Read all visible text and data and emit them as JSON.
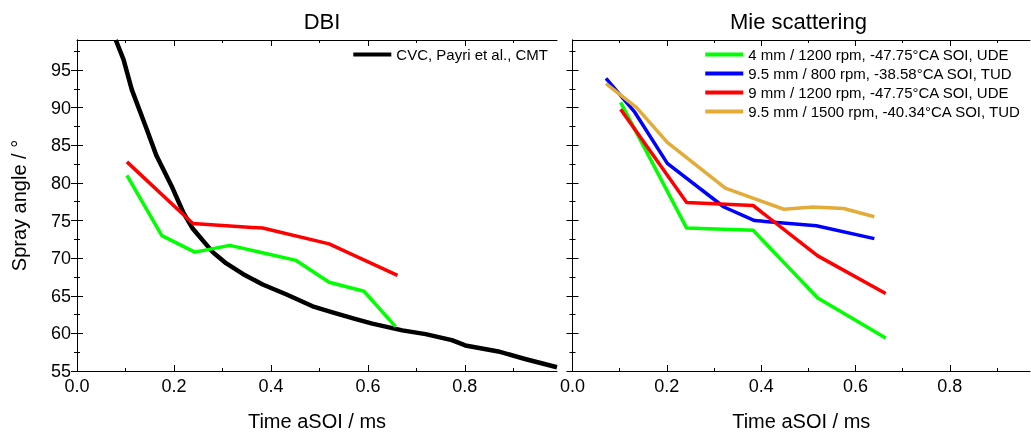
{
  "chart_data": [
    {
      "type": "line",
      "title": "DBI",
      "xlabel": "Time aSOI / ms",
      "ylabel": "Spray angle / °",
      "xlim": [
        0,
        0.99
      ],
      "xticks": [
        {
          "value": 0,
          "label": "0.0"
        },
        0.2,
        0.4,
        0.6,
        0.8
      ],
      "ylim": [
        55,
        99
      ],
      "yticks": [
        55,
        60,
        65,
        70,
        75,
        80,
        85,
        90,
        95
      ],
      "legend": "top right",
      "line_style": "solid",
      "marker": "none",
      "series": [
        {
          "name": "CVC, Payri et al., CMT",
          "color": "#000000",
          "x": [
            0.08,
            0.096,
            0.113,
            0.144,
            0.164,
            0.195,
            0.219,
            0.239,
            0.28,
            0.308,
            0.342,
            0.383,
            0.431,
            0.486,
            0.527,
            0.575,
            0.609,
            0.671,
            0.719,
            0.773,
            0.801,
            0.869,
            0.924,
            0.99
          ],
          "values": [
            99,
            96.4,
            92.4,
            87.1,
            83.6,
            79.6,
            76.1,
            73.9,
            70.8,
            69.3,
            67.9,
            66.5,
            65.2,
            63.6,
            62.8,
            61.9,
            61.3,
            60.4,
            59.9,
            59.1,
            58.4,
            57.6,
            56.6,
            55.5
          ]
        },
        {
          "color": "#ff0000",
          "x": [
            0.103,
            0.239,
            0.383,
            0.52,
            0.661
          ],
          "values": [
            82.8,
            74.6,
            74.0,
            71.9,
            67.7
          ]
        },
        {
          "color": "#00ff00",
          "x": [
            0.103,
            0.175,
            0.243,
            0.315,
            0.452,
            0.52,
            0.592,
            0.657
          ],
          "values": [
            81.0,
            73.0,
            70.8,
            71.7,
            69.7,
            66.8,
            65.6,
            60.9
          ]
        }
      ]
    },
    {
      "type": "line",
      "title": "Mie scattering",
      "xlabel": "Time aSOI / ms",
      "xlim": [
        0,
        0.97
      ],
      "xticks": [
        {
          "value": 0,
          "label": "0.0"
        },
        0.2,
        0.4,
        0.6,
        0.8
      ],
      "ylim": [
        55,
        99
      ],
      "yticks": [
        55,
        60,
        65,
        70,
        75,
        80,
        85,
        90,
        95
      ],
      "tick_labels": "x",
      "legend": "top right",
      "line_style": "solid",
      "marker": "none",
      "series": [
        {
          "name": "4 mm / 1200 rpm, -47.75°CA SOI, UDE",
          "color": "#00ff00",
          "x": [
            0.102,
            0.242,
            0.383,
            0.52,
            0.664
          ],
          "values": [
            90.7,
            74.0,
            73.7,
            64.7,
            59.4
          ]
        },
        {
          "name": "9.5 mm / 800 rpm, -38.58°CA SOI, TUD",
          "color": "#0000ff",
          "x": [
            0.071,
            0.132,
            0.201,
            0.321,
            0.386,
            0.517,
            0.64
          ],
          "values": [
            93.9,
            89.4,
            82.6,
            76.8,
            75.0,
            74.3,
            72.6
          ]
        },
        {
          "name": "9 mm / 1200 rpm, -47.75°CA SOI, UDE",
          "color": "#ff0000",
          "x": [
            0.102,
            0.242,
            0.383,
            0.52,
            0.664
          ],
          "values": [
            89.8,
            77.4,
            77.0,
            70.3,
            65.3
          ]
        },
        {
          "name": "9.5 mm / 1500 rpm, -40.34°CA SOI, TUD",
          "color": "#e3ac38",
          "x": [
            0.071,
            0.136,
            0.201,
            0.324,
            0.448,
            0.51,
            0.575,
            0.64
          ],
          "values": [
            93.2,
            90.0,
            85.4,
            79.3,
            76.5,
            76.8,
            76.6,
            75.5
          ]
        }
      ]
    }
  ]
}
